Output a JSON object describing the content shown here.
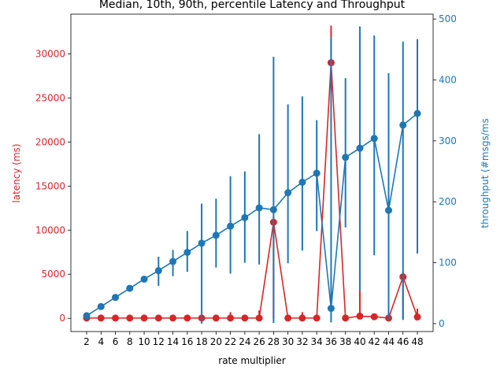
{
  "chart_data": {
    "type": "line",
    "title": "Median, 10th, 90th, percentile Latency and Throughput",
    "xlabel": "rate multiplier",
    "ylabel_left": "latency (ms)",
    "ylabel_right": "throughput (#msgs/ms",
    "categories": [
      "2",
      "4",
      "6",
      "8",
      "10",
      "12",
      "14",
      "16",
      "18",
      "20",
      "22",
      "24",
      "26",
      "28",
      "30",
      "32",
      "34",
      "36",
      "38",
      "40",
      "42",
      "44",
      "46",
      "48"
    ],
    "ylim_left": [
      -1500,
      34500
    ],
    "ylim_right": [
      -13,
      508
    ],
    "yticks_left": [
      0,
      5000,
      10000,
      15000,
      20000,
      25000,
      30000
    ],
    "yticks_right": [
      0,
      100,
      200,
      300,
      400,
      500
    ],
    "grid": false,
    "colors": {
      "latency": "#d62728",
      "throughput": "#1f77b4",
      "axis": "#000000"
    },
    "series": [
      {
        "axis": "left",
        "color": "#d62728",
        "median": [
          30,
          30,
          30,
          30,
          30,
          30,
          30,
          30,
          30,
          30,
          30,
          30,
          30,
          10900,
          30,
          30,
          30,
          29000,
          30,
          250,
          180,
          30,
          4700,
          150
        ],
        "p10": [
          0,
          0,
          0,
          0,
          0,
          0,
          0,
          0,
          0,
          0,
          0,
          0,
          0,
          0,
          0,
          0,
          0,
          28000,
          0,
          0,
          0,
          0,
          0,
          0
        ],
        "p90": [
          150,
          150,
          150,
          150,
          150,
          150,
          150,
          150,
          150,
          150,
          700,
          150,
          900,
          11500,
          150,
          700,
          150,
          33200,
          150,
          3200,
          400,
          150,
          5300,
          1100
        ]
      },
      {
        "axis": "right",
        "color": "#1f77b4",
        "median": [
          13,
          28,
          43,
          58,
          73,
          87,
          102,
          117,
          132,
          145,
          160,
          174,
          190,
          187,
          215,
          232,
          247,
          25,
          273,
          288,
          304,
          186,
          326,
          345
        ],
        "p10": [
          13,
          28,
          43,
          58,
          73,
          62,
          78,
          85,
          0,
          92,
          82,
          100,
          97,
          1,
          99,
          120,
          152,
          2,
          158,
          54,
          112,
          7,
          6,
          115
        ],
        "p90": [
          13,
          28,
          43,
          58,
          73,
          110,
          121,
          152,
          197,
          205,
          242,
          250,
          311,
          438,
          360,
          373,
          334,
          470,
          403,
          488,
          473,
          411,
          463,
          467
        ]
      }
    ]
  }
}
